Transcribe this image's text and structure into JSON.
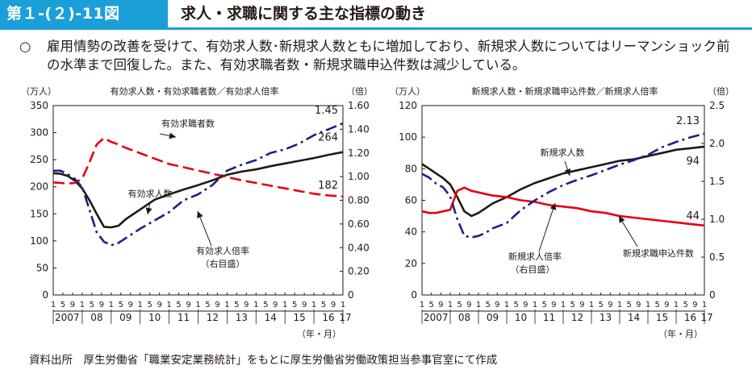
{
  "header": {
    "figure_number": "第１-(２)-11図",
    "title": "求人・求職に関する主な指標の動き"
  },
  "summary": {
    "bullet": "○",
    "text": "雇用情勢の改善を受けて、有効求人数･新規求人数ともに増加しており、新規求人数についてはリーマンショック前の水準まで回復した。また、有効求職者数・新規求職申込件数は減少している。"
  },
  "source": "資料出所　厚生労働省「職業安定業務統計」をもとに厚生労働省労働政策担当参事官室にて作成",
  "colors": {
    "accent": "#1b9fd8",
    "black_series": "#231815",
    "red_series": "#e60012",
    "blue_series": "#1d2088"
  },
  "chart_data": [
    {
      "type": "line",
      "title": "有効求人数・有効求職者数／有効求人倍率",
      "ylabel_left": "（万人）",
      "ylabel_right": "（倍）",
      "xlabel": "（年・月）",
      "ylim_left": [
        0,
        350
      ],
      "yticks_left": [
        "0",
        "50",
        "100",
        "150",
        "200",
        "250",
        "300",
        "350"
      ],
      "ylim_right": [
        0,
        1.6
      ],
      "yticks_right": [
        "0",
        "0.20",
        "0.40",
        "0.60",
        "0.80",
        "1.00",
        "1.20",
        "1.40",
        "1.60"
      ],
      "x_month_labels": [
        "1",
        "5",
        "9",
        "1",
        "5",
        "9",
        "1",
        "5",
        "9",
        "1",
        "5",
        "9",
        "1",
        "5",
        "9",
        "1",
        "5",
        "9",
        "1",
        "5",
        "9",
        "1",
        "5",
        "9",
        "1",
        "5",
        "9",
        "1",
        "5",
        "9",
        "1"
      ],
      "x_year_labels": [
        "2007",
        "08",
        "09",
        "10",
        "11",
        "12",
        "13",
        "14",
        "15",
        "16",
        "17"
      ],
      "series": [
        {
          "name": "有効求人数",
          "axis": "left",
          "style": "solid",
          "color": "#231815",
          "x": [
            0,
            3,
            6,
            9,
            12,
            15,
            18,
            21,
            24,
            27,
            30,
            36,
            42,
            48,
            54,
            60,
            66,
            72,
            78,
            84,
            90,
            96,
            102,
            108,
            114,
            120
          ],
          "values": [
            225,
            224,
            220,
            211,
            197,
            175,
            150,
            126,
            125,
            128,
            140,
            158,
            176,
            186,
            195,
            203,
            212,
            222,
            228,
            232,
            238,
            243,
            248,
            253,
            259,
            264
          ],
          "end_label": "264"
        },
        {
          "name": "有効求職者数",
          "axis": "left",
          "style": "dashed",
          "color": "#e60012",
          "x": [
            0,
            3,
            6,
            9,
            12,
            15,
            18,
            21,
            24,
            27,
            30,
            36,
            42,
            48,
            54,
            60,
            66,
            72,
            78,
            84,
            90,
            96,
            102,
            108,
            114,
            120
          ],
          "values": [
            208,
            207,
            206,
            207,
            215,
            245,
            278,
            290,
            283,
            278,
            272,
            262,
            252,
            242,
            236,
            230,
            224,
            218,
            212,
            207,
            202,
            197,
            192,
            187,
            184,
            182
          ],
          "end_label": "182"
        },
        {
          "name": "有効求人倍率（右目盛）",
          "axis": "right",
          "style": "dashdot",
          "color": "#1d2088",
          "x": [
            0,
            3,
            6,
            9,
            12,
            15,
            18,
            21,
            24,
            27,
            30,
            36,
            42,
            48,
            54,
            60,
            66,
            72,
            78,
            84,
            90,
            96,
            102,
            108,
            114,
            120
          ],
          "values": [
            1.05,
            1.05,
            1.02,
            0.98,
            0.91,
            0.72,
            0.53,
            0.45,
            0.42,
            0.44,
            0.48,
            0.56,
            0.63,
            0.7,
            0.8,
            0.85,
            0.93,
            1.05,
            1.1,
            1.14,
            1.2,
            1.23,
            1.28,
            1.35,
            1.4,
            1.45
          ],
          "end_label": "1.45"
        }
      ],
      "annotations": [
        "有効求職者数",
        "有効求人数",
        "有効求人倍率",
        "（右目盛）"
      ]
    },
    {
      "type": "line",
      "title": "新規求人数・新規求職申込件数／新規求人倍率",
      "ylabel_left": "（万人）",
      "ylabel_right": "（倍）",
      "xlabel": "（年・月）",
      "ylim_left": [
        0,
        120
      ],
      "yticks_left": [
        "0",
        "20",
        "40",
        "60",
        "80",
        "100",
        "120"
      ],
      "ylim_right": [
        0,
        2.5
      ],
      "yticks_right": [
        "0",
        "0.5",
        "1.0",
        "1.5",
        "2.0",
        "2.5"
      ],
      "x_month_labels": [
        "1",
        "5",
        "9",
        "1",
        "5",
        "9",
        "1",
        "5",
        "9",
        "1",
        "5",
        "9",
        "1",
        "5",
        "9",
        "1",
        "5",
        "9",
        "1",
        "5",
        "9",
        "1",
        "5",
        "9",
        "1",
        "5",
        "9",
        "1",
        "5",
        "9",
        "1"
      ],
      "x_year_labels": [
        "2007",
        "08",
        "09",
        "10",
        "11",
        "12",
        "13",
        "14",
        "15",
        "16",
        "17"
      ],
      "series": [
        {
          "name": "新規求人数",
          "axis": "left",
          "style": "solid",
          "color": "#231815",
          "x": [
            0,
            3,
            6,
            9,
            12,
            15,
            18,
            21,
            24,
            27,
            30,
            36,
            42,
            48,
            54,
            60,
            66,
            72,
            78,
            84,
            90,
            96,
            102,
            108,
            114,
            120
          ],
          "values": [
            83,
            80,
            77,
            74,
            70,
            62,
            53,
            50,
            52,
            55,
            58,
            62,
            67,
            71,
            74,
            77,
            79,
            81,
            83,
            85,
            86,
            88,
            90,
            92,
            93,
            94
          ],
          "end_label": "94"
        },
        {
          "name": "新規求職申込件数",
          "axis": "left",
          "style": "solid",
          "color": "#e60012",
          "x": [
            0,
            3,
            6,
            9,
            12,
            15,
            18,
            21,
            24,
            27,
            30,
            36,
            42,
            48,
            54,
            60,
            66,
            72,
            78,
            84,
            90,
            96,
            102,
            108,
            114,
            120
          ],
          "values": [
            53,
            52,
            52,
            53,
            54,
            66,
            68,
            66,
            65,
            64,
            63,
            62,
            60,
            59,
            57,
            56,
            55,
            53,
            52,
            50,
            49,
            48,
            47,
            46,
            45,
            44
          ],
          "end_label": "44"
        },
        {
          "name": "新規求人倍率（右目盛）",
          "axis": "right",
          "style": "dashdot",
          "color": "#1d2088",
          "x": [
            0,
            3,
            6,
            9,
            12,
            15,
            18,
            21,
            24,
            27,
            30,
            36,
            42,
            48,
            54,
            60,
            66,
            72,
            78,
            84,
            90,
            96,
            102,
            108,
            114,
            120
          ],
          "values": [
            1.6,
            1.55,
            1.47,
            1.42,
            1.3,
            1.0,
            0.78,
            0.76,
            0.78,
            0.82,
            0.88,
            0.95,
            1.12,
            1.25,
            1.36,
            1.45,
            1.52,
            1.58,
            1.65,
            1.72,
            1.78,
            1.85,
            1.95,
            2.02,
            2.08,
            2.13
          ],
          "end_label": "2.13"
        }
      ],
      "annotations": [
        "新規求人数",
        "新規求人倍率",
        "（右目盛）",
        "新規求職申込件数"
      ]
    }
  ]
}
